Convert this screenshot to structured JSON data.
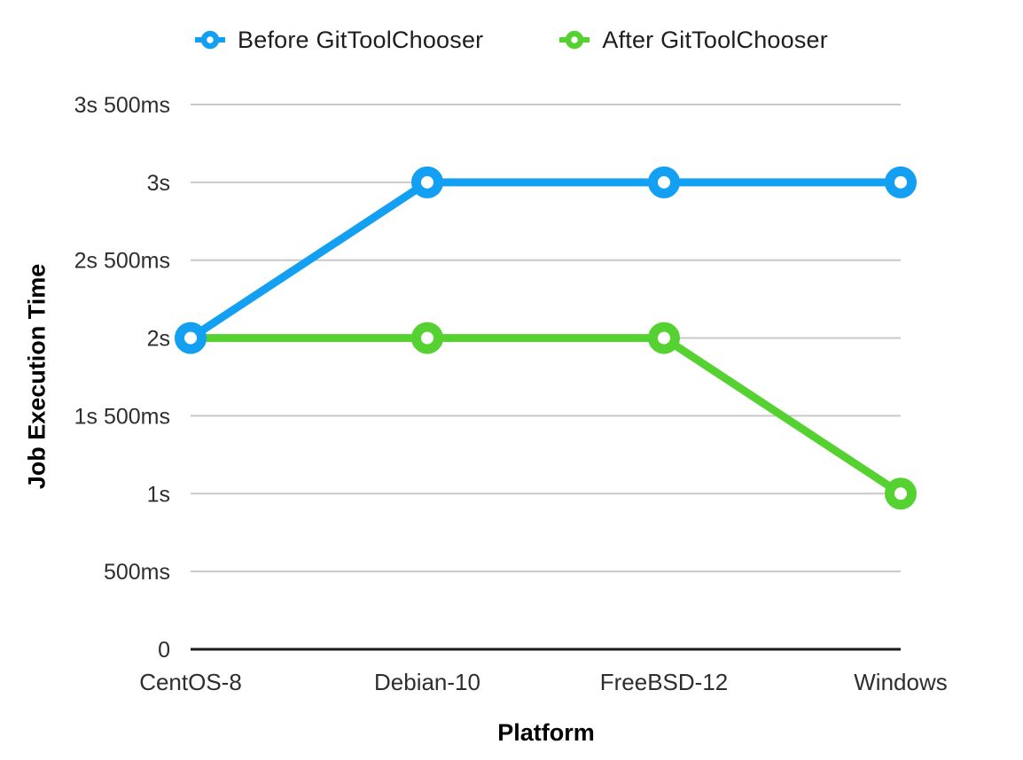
{
  "chart_data": {
    "type": "line",
    "title": "",
    "xlabel": "Platform",
    "ylabel": "Job Execution Time",
    "categories": [
      "CentOS-8",
      "Debian-10",
      "FreeBSD-12",
      "Windows"
    ],
    "series": [
      {
        "name": "Before GitToolChooser",
        "color": "#14A0F2",
        "values_ms": [
          2000,
          3000,
          3000,
          3000
        ],
        "values_label": [
          "2s",
          "3s",
          "3s",
          "3s"
        ]
      },
      {
        "name": "After GitToolChooser",
        "color": "#55D232",
        "values_ms": [
          2000,
          2000,
          2000,
          1000
        ],
        "values_label": [
          "2s",
          "2s",
          "2s",
          "1s"
        ]
      }
    ],
    "yticks": [
      {
        "ms": 0,
        "label": "0"
      },
      {
        "ms": 500,
        "label": "500ms"
      },
      {
        "ms": 1000,
        "label": "1s"
      },
      {
        "ms": 1500,
        "label": "1s 500ms"
      },
      {
        "ms": 2000,
        "label": "2s"
      },
      {
        "ms": 2500,
        "label": "2s 500ms"
      },
      {
        "ms": 3000,
        "label": "3s"
      },
      {
        "ms": 3500,
        "label": "3s 500ms"
      }
    ],
    "ylim_ms": [
      0,
      3500
    ],
    "grid": "horizontal",
    "legend_position": "top",
    "marker_shape": "ring"
  },
  "colors": {
    "gridline": "#C9C9C9",
    "axis_line": "#1A1A1A",
    "tick_text": "#2E2E2E",
    "title_text": "#000000",
    "background": "#FFFFFF",
    "marker_fill": "#FFFFFF"
  }
}
